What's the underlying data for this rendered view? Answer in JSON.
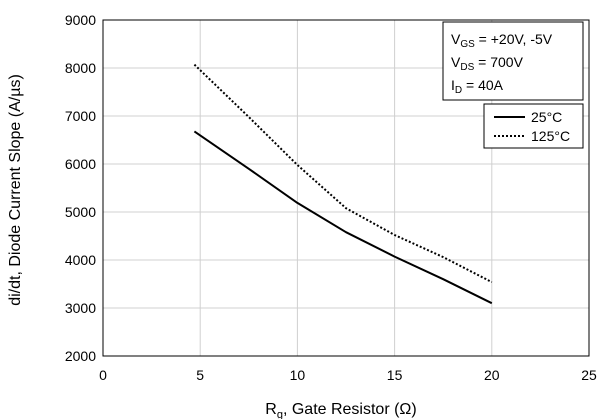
{
  "chart_data": {
    "type": "line",
    "xlabel_main": "R",
    "xlabel_sub": "g",
    "xlabel_rest": ", Gate Resistor (Ω)",
    "ylabel": "di/dt,  Diode Current Slope (A/µs)",
    "xlim": [
      0,
      25
    ],
    "ylim": [
      2000,
      9000
    ],
    "x_ticks": [
      "0",
      "5",
      "10",
      "15",
      "20",
      "25"
    ],
    "y_ticks": [
      "2000",
      "3000",
      "4000",
      "5000",
      "6000",
      "7000",
      "8000",
      "9000"
    ],
    "grid": true,
    "conditions": [
      {
        "main": "V",
        "sub": "GS",
        "rest": " = +20V, -5V"
      },
      {
        "main": "V",
        "sub": "DS",
        "rest": " = 700V"
      },
      {
        "main": "I",
        "sub": "D",
        "rest": " = 40A"
      }
    ],
    "legend_position": "top-right",
    "series": [
      {
        "name": "25°C",
        "style": "solid",
        "color": "#000000",
        "x": [
          4.7,
          7.5,
          10,
          12.5,
          15,
          17.5,
          20
        ],
        "y": [
          6680,
          5900,
          5190,
          4580,
          4070,
          3600,
          3100
        ]
      },
      {
        "name": "125°C",
        "style": "dotted",
        "color": "#000000",
        "x": [
          4.7,
          7.5,
          10,
          12.5,
          15,
          17.5,
          20
        ],
        "y": [
          8070,
          6980,
          5980,
          5080,
          4520,
          4060,
          3540
        ]
      }
    ]
  }
}
